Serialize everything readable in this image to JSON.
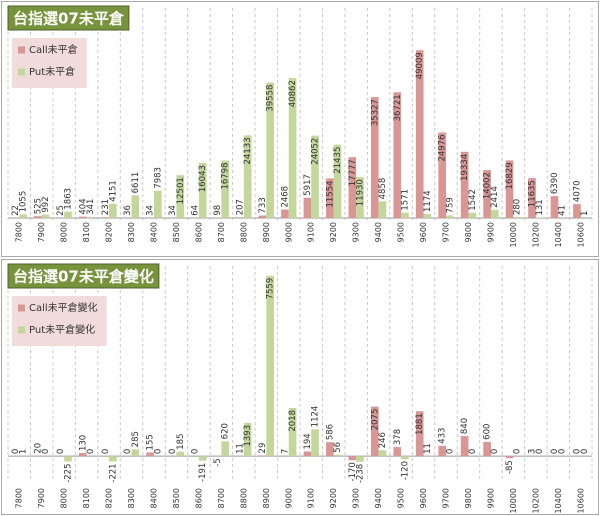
{
  "chart_data": [
    {
      "type": "bar",
      "title": "台指選07未平倉",
      "categories": [
        "7800",
        "7900",
        "8000",
        "8100",
        "8200",
        "8300",
        "8400",
        "8500",
        "8600",
        "8700",
        "8800",
        "8900",
        "9000",
        "9100",
        "9200",
        "9300",
        "9400",
        "9500",
        "9600",
        "9700",
        "9800",
        "9900",
        "10000",
        "10200",
        "10400",
        "10600"
      ],
      "series": [
        {
          "name": "Call未平倉",
          "color": "#d99694",
          "values": [
            22,
            525,
            25,
            404,
            231,
            36,
            34,
            34,
            64,
            98,
            207,
            733,
            2468,
            5917,
            11554,
            17777,
            35327,
            36721,
            49009,
            24976,
            19334,
            14002,
            16829,
            11635,
            6390,
            4070
          ]
        },
        {
          "name": "Put未平倉",
          "color": "#c3d69b",
          "values": [
            1055,
            992,
            1863,
            341,
            4151,
            6611,
            7983,
            12501,
            16043,
            16798,
            24133,
            39558,
            40862,
            24052,
            21435,
            11930,
            4858,
            1571,
            1174,
            759,
            1542,
            2414,
            280,
            131,
            41,
            1
          ]
        }
      ],
      "ylim": [
        0,
        52000
      ]
    },
    {
      "type": "bar",
      "title": "台指選07未平倉變化",
      "categories": [
        "7800",
        "7900",
        "8000",
        "8100",
        "8200",
        "8300",
        "8400",
        "8500",
        "8600",
        "8700",
        "8800",
        "8900",
        "9000",
        "9100",
        "9200",
        "9300",
        "9400",
        "9500",
        "9600",
        "9700",
        "9800",
        "9900",
        "10000",
        "10200",
        "10400",
        "10600"
      ],
      "series": [
        {
          "name": "Call未平倉變化",
          "color": "#d99694",
          "values": [
            0,
            20,
            0,
            130,
            0,
            0,
            155,
            0,
            0,
            -5,
            11,
            29,
            7,
            194,
            586,
            -170,
            2075,
            378,
            1881,
            433,
            840,
            600,
            -85,
            3,
            0,
            0
          ]
        },
        {
          "name": "Put未平倉變化",
          "color": "#c3d69b",
          "values": [
            1,
            0,
            -225,
            0,
            -221,
            285,
            0,
            185,
            -191,
            620,
            1393,
            7559,
            2018,
            1124,
            56,
            -238,
            246,
            -120,
            11,
            0,
            0,
            0,
            0,
            0,
            0,
            0
          ]
        }
      ],
      "ylim": [
        -1000,
        7800
      ]
    }
  ]
}
